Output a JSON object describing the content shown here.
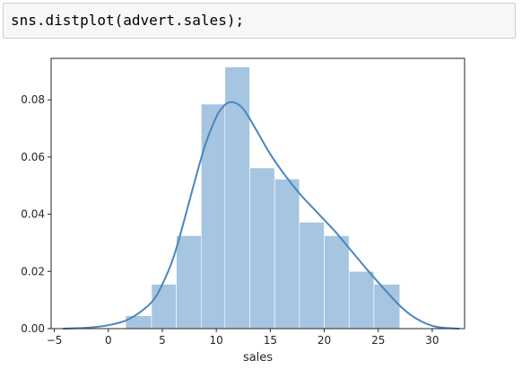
{
  "code_cell": {
    "source": "sns.distplot(advert.sales);"
  },
  "colors": {
    "hist_fill": "#a6c5e0",
    "kde_line": "#4a86bd",
    "axes_edge": "#262626",
    "tick_text": "#262626"
  },
  "chart_data": {
    "type": "bar",
    "xlabel": "sales",
    "ylabel": "",
    "xlim": [
      -5.3,
      33.0
    ],
    "ylim": [
      0,
      0.0945
    ],
    "xticks": [
      -5,
      0,
      5,
      10,
      15,
      20,
      25,
      30
    ],
    "xtick_labels": [
      "−5",
      "0",
      "5",
      "10",
      "15",
      "20",
      "25",
      "30"
    ],
    "yticks": [
      0.0,
      0.02,
      0.04,
      0.06,
      0.08
    ],
    "ytick_labels": [
      "0.00",
      "0.02",
      "0.04",
      "0.06",
      "0.08"
    ],
    "histogram": {
      "bin_edges": [
        1.6,
        4.0,
        6.3,
        8.6,
        10.8,
        13.1,
        15.4,
        17.7,
        20.0,
        22.3,
        24.6,
        27.0
      ],
      "heights": [
        0.0045,
        0.0155,
        0.0325,
        0.0785,
        0.0915,
        0.0562,
        0.0523,
        0.0372,
        0.0325,
        0.02,
        0.0155
      ]
    },
    "kde": {
      "x": [
        -4.2,
        -2,
        0,
        2,
        4,
        5,
        6,
        7,
        8,
        9,
        10,
        10.5,
        11,
        11.5,
        12,
        12.5,
        13,
        14,
        15,
        16,
        17,
        18,
        19,
        20,
        21,
        22,
        23,
        24,
        25,
        26,
        27,
        28,
        29,
        30,
        31,
        32.5
      ],
      "y": [
        0.0,
        0.0003,
        0.0012,
        0.0035,
        0.0092,
        0.0155,
        0.0245,
        0.0375,
        0.0515,
        0.0645,
        0.074,
        0.077,
        0.0788,
        0.0792,
        0.0785,
        0.0768,
        0.074,
        0.0675,
        0.061,
        0.0555,
        0.0505,
        0.046,
        0.042,
        0.038,
        0.034,
        0.0295,
        0.025,
        0.0205,
        0.0162,
        0.012,
        0.008,
        0.0048,
        0.0025,
        0.001,
        0.0003,
        0.0
      ]
    }
  }
}
